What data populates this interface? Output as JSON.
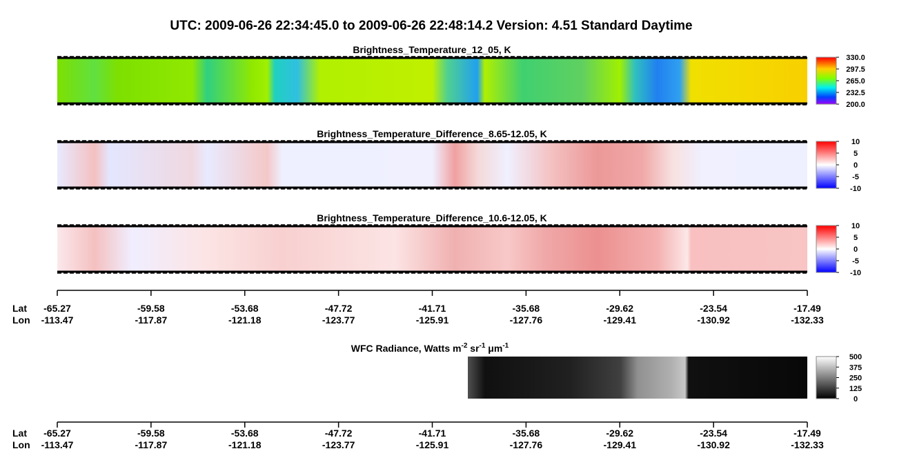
{
  "title": "UTC:  2009-06-26   22:34:45.0  to  2009-06-26   22:48:14.2    Version: 4.51  Standard Daytime",
  "panels": [
    {
      "title": "Brightness_Temperature_12_05, K",
      "colorbar_ticks": [
        "330.0",
        "297.5",
        "265.0",
        "232.5",
        "200.0"
      ]
    },
    {
      "title": "Brightness_Temperature_Difference_8.65-12.05, K",
      "colorbar_ticks": [
        "10",
        "5",
        "0",
        "-5",
        "-10"
      ]
    },
    {
      "title": "Brightness_Temperature_Difference_10.6-12.05, K",
      "colorbar_ticks": [
        "10",
        "5",
        "0",
        "-5",
        "-10"
      ]
    }
  ],
  "wfc": {
    "title_parts": [
      "WFC Radiance, Watts m",
      "-2",
      " sr",
      "-1",
      " μm",
      "-1"
    ],
    "colorbar_ticks": [
      "500",
      "375",
      "250",
      "125",
      "0"
    ]
  },
  "axes": [
    {
      "lat_label": "Lat",
      "lon_label": "Lon",
      "lat": [
        "-65.27",
        "-59.58",
        "-53.68",
        "-47.72",
        "-41.71",
        "-35.68",
        "-29.62",
        "-23.54",
        "-17.49"
      ],
      "lon": [
        "-113.47",
        "-117.87",
        "-121.18",
        "-123.77",
        "-125.91",
        "-127.76",
        "-129.41",
        "-130.92",
        "-132.33"
      ]
    },
    {
      "lat_label": "Lat",
      "lon_label": "Lon",
      "lat": [
        "-65.27",
        "-59.58",
        "-53.68",
        "-47.72",
        "-41.71",
        "-35.68",
        "-29.62",
        "-23.54",
        "-17.49"
      ],
      "lon": [
        "-113.47",
        "-117.87",
        "-121.18",
        "-123.77",
        "-125.91",
        "-127.76",
        "-129.41",
        "-130.92",
        "-132.33"
      ]
    }
  ]
}
